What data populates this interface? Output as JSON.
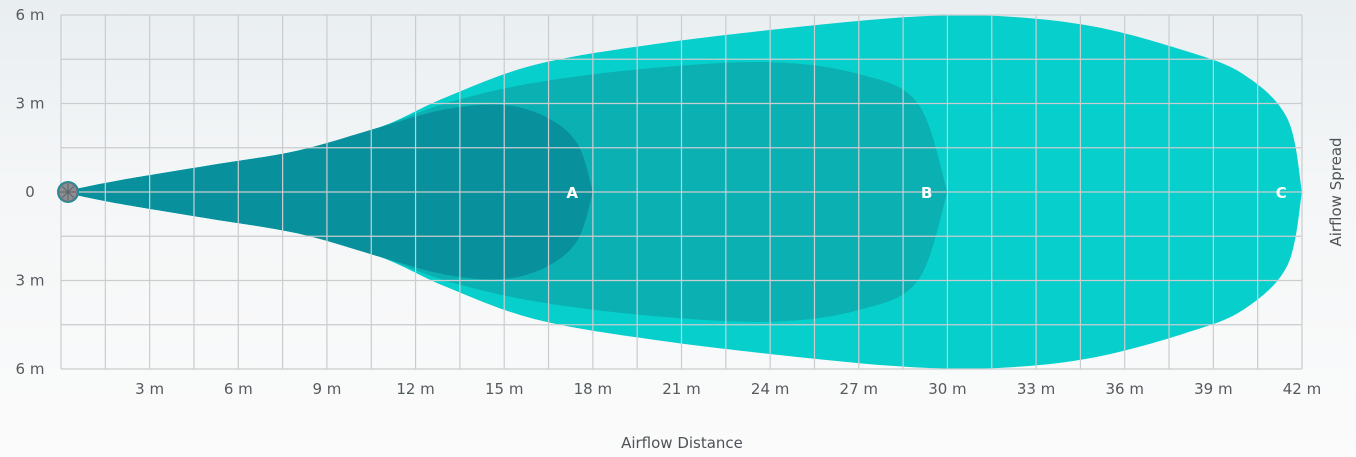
{
  "chart_data": {
    "type": "area",
    "x_unit": "m",
    "y_unit": "m",
    "xlim": [
      0,
      42
    ],
    "ylim": [
      -6,
      6
    ],
    "grid": true,
    "x_ticks": [
      "3 m",
      "6 m",
      "9 m",
      "12 m",
      "15 m",
      "18 m",
      "21 m",
      "24 m",
      "27 m",
      "30 m",
      "33 m",
      "36 m",
      "39 m",
      "42 m"
    ],
    "y_ticks": [
      "6 m",
      "3 m",
      "0",
      "3 m",
      "6 m"
    ],
    "xlabel": "Airflow Distance",
    "ylabel": "Airflow Spread",
    "colors": {
      "A": "#08919d",
      "B": "#0bb0b3",
      "C": "#06cfcc",
      "grid": "#c9cdd0",
      "fan": "#8a8f93"
    },
    "series": [
      {
        "name": "C",
        "throw_m": 42,
        "max_spread_m": 6,
        "profile": [
          [
            0,
            0
          ],
          [
            2,
            0.4
          ],
          [
            5,
            0.9
          ],
          [
            8,
            1.4
          ],
          [
            10.8,
            2.2
          ],
          [
            13,
            3.2
          ],
          [
            16,
            4.3
          ],
          [
            20,
            5.0
          ],
          [
            25,
            5.6
          ],
          [
            29,
            5.95
          ],
          [
            32,
            5.95
          ],
          [
            35,
            5.6
          ],
          [
            38,
            4.8
          ],
          [
            40,
            4.0
          ],
          [
            41.5,
            2.5
          ],
          [
            42,
            0
          ]
        ]
      },
      {
        "name": "B",
        "throw_m": 30,
        "max_spread_m": 4.4,
        "profile": [
          [
            0,
            0
          ],
          [
            2,
            0.4
          ],
          [
            5,
            0.9
          ],
          [
            8,
            1.4
          ],
          [
            10.8,
            2.2
          ],
          [
            13,
            3.0
          ],
          [
            16,
            3.7
          ],
          [
            20,
            4.2
          ],
          [
            24,
            4.4
          ],
          [
            27,
            4.0
          ],
          [
            29,
            3.0
          ],
          [
            30,
            0
          ]
        ]
      },
      {
        "name": "A",
        "throw_m": 18,
        "max_spread_m": 3,
        "profile": [
          [
            0,
            0
          ],
          [
            2,
            0.4
          ],
          [
            5,
            0.9
          ],
          [
            8,
            1.4
          ],
          [
            10.8,
            2.2
          ],
          [
            13,
            2.8
          ],
          [
            15,
            2.95
          ],
          [
            16.5,
            2.5
          ],
          [
            17.5,
            1.6
          ],
          [
            18,
            0
          ]
        ]
      }
    ],
    "labels": [
      {
        "text": "A",
        "x": 17.3,
        "y": 0
      },
      {
        "text": "B",
        "x": 29.3,
        "y": 0
      },
      {
        "text": "C",
        "x": 41.3,
        "y": 0
      }
    ]
  }
}
